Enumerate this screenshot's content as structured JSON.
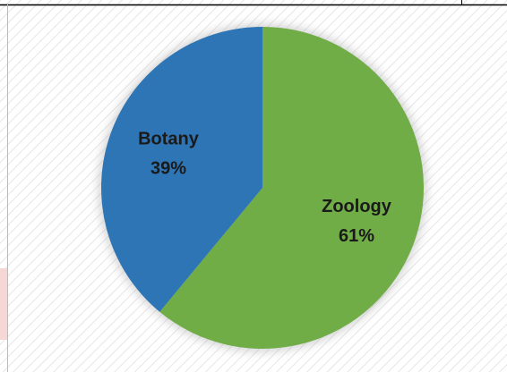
{
  "chart_data": {
    "type": "pie",
    "categories": [
      "Zoology",
      "Botany"
    ],
    "values": [
      61,
      39
    ],
    "value_labels": [
      "61%",
      "39%"
    ],
    "colors": [
      "#70ad47",
      "#2e75b6"
    ]
  }
}
